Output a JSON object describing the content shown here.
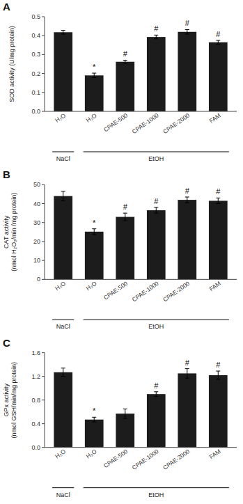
{
  "chart_data": [
    {
      "type": "bar",
      "title": "A",
      "ylabel": "SOD activity (U/mg protein)",
      "categories": [
        "H₂O",
        "H₂O",
        "CPAE-500",
        "CPAE-1000",
        "CPAE-2000",
        "FAM"
      ],
      "values": [
        0.418,
        0.19,
        0.262,
        0.393,
        0.42,
        0.365
      ],
      "errors": [
        0.01,
        0.012,
        0.008,
        0.01,
        0.012,
        0.01
      ],
      "annotations": [
        null,
        "*",
        "#",
        "#",
        "#",
        "#"
      ],
      "groups": [
        {
          "name": "NaCl",
          "count": 1
        },
        {
          "name": "EtOH",
          "count": 5
        }
      ],
      "color": "#1c1c1c",
      "grid": false,
      "ylim": [
        0,
        0.5
      ],
      "yticks": [
        {
          "value": 0,
          "label": "0.0"
        },
        0.1,
        0.2,
        0.3,
        0.4,
        0.5
      ]
    },
    {
      "type": "bar",
      "title": "B",
      "ylabel": "CAT activity\n(nmol H₂O₂/min /mg protein)",
      "categories": [
        "H₂O",
        "H₂O",
        "CPAE-500",
        "CPAE-1000",
        "CPAE-2000",
        "FAM"
      ],
      "values": [
        44.0,
        25.2,
        33.0,
        36.5,
        42.0,
        41.5
      ],
      "errors": [
        2.5,
        1.5,
        2.0,
        1.5,
        1.5,
        1.5
      ],
      "annotations": [
        null,
        "*",
        "#",
        "#",
        "#",
        "#"
      ],
      "groups": [
        {
          "name": "NaCl",
          "count": 1
        },
        {
          "name": "EtOH",
          "count": 5
        }
      ],
      "color": "#1c1c1c",
      "grid": false,
      "ylim": [
        0,
        50
      ],
      "yticks": [
        0,
        10,
        20,
        30,
        40,
        50
      ]
    },
    {
      "type": "bar",
      "title": "C",
      "ylabel": "GPx activity\n(nmol GSH/min/mg protein)",
      "categories": [
        "H₂O",
        "H₂O",
        "CPAE-500",
        "CPAE-1000",
        "CPAE-2000",
        "FAM"
      ],
      "values": [
        1.27,
        0.47,
        0.57,
        0.9,
        1.25,
        1.22
      ],
      "errors": [
        0.07,
        0.04,
        0.08,
        0.04,
        0.08,
        0.07
      ],
      "annotations": [
        null,
        "*",
        null,
        "#",
        "#",
        "#"
      ],
      "groups": [
        {
          "name": "NaCl",
          "count": 1
        },
        {
          "name": "EtOH",
          "count": 5
        }
      ],
      "color": "#1c1c1c",
      "grid": false,
      "ylim": [
        0,
        1.6
      ],
      "yticks": [
        {
          "value": 0,
          "label": "0.0"
        },
        0.4,
        0.8,
        1.2,
        1.6
      ]
    }
  ]
}
